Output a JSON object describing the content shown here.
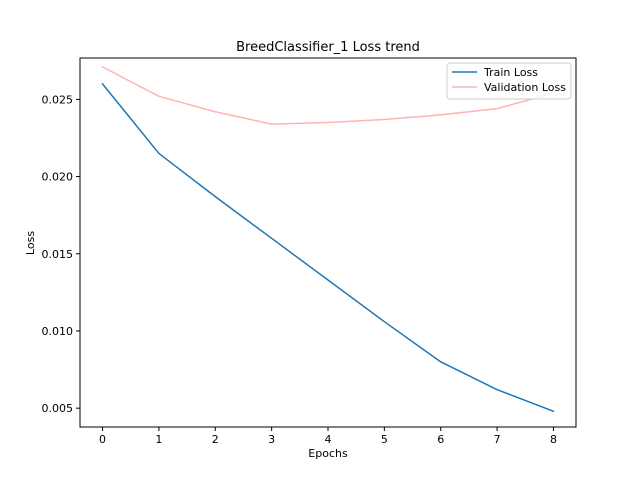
{
  "chart_data": {
    "type": "line",
    "title": "BreedClassifier_1 Loss trend",
    "xlabel": "Epochs",
    "ylabel": "Loss",
    "x": [
      0,
      1,
      2,
      3,
      4,
      5,
      6,
      7,
      8
    ],
    "xticks": [
      "0",
      "1",
      "2",
      "3",
      "4",
      "5",
      "6",
      "7",
      "8"
    ],
    "yticks": [
      "0.005",
      "0.010",
      "0.015",
      "0.020",
      "0.025"
    ],
    "xlim": [
      -0.4,
      8.4
    ],
    "ylim": [
      0.00378,
      0.02768
    ],
    "grid": false,
    "legend_position": "upper right",
    "series": [
      {
        "name": "Train Loss",
        "color": "#1f77b4",
        "values": [
          0.026,
          0.0215,
          0.0187,
          0.016,
          0.0133,
          0.0106,
          0.008,
          0.0062,
          0.0048
        ]
      },
      {
        "name": "Validation Loss",
        "color": "#ffb3b3",
        "values": [
          0.0271,
          0.0252,
          0.0242,
          0.0234,
          0.0235,
          0.0237,
          0.024,
          0.0244,
          0.0254
        ]
      }
    ]
  }
}
